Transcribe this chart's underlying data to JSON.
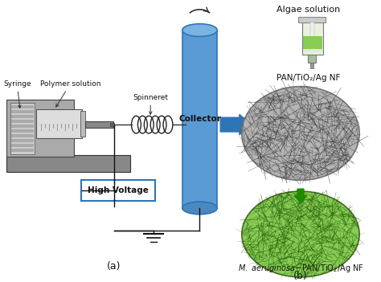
{
  "bg_color": "#ffffff",
  "label_a": "(a)",
  "label_b": "(b)",
  "label_syringe": "Syringe",
  "label_polymer": "Polymer solution",
  "label_spinneret": "Spinneret",
  "label_collector": "Collector",
  "label_high_voltage": "High Voltage",
  "label_algae": "Algae solution",
  "label_pan_tio2": "PAN/TiO₂/Ag NF",
  "label_m_aeru": "M. aeruginosa-PAN/TiO₂/Ag NF",
  "collector_color": "#5b9bd5",
  "collector_dark": "#2e75b6",
  "collector_light": "#7ab4e0",
  "arrow_color": "#2e75b6",
  "green_arrow_color": "#1e8a00",
  "hv_box_edge": "#2e75b6",
  "wire_color": "#111111",
  "gray_base": "#999999",
  "light_gray": "#cccccc",
  "mid_gray": "#aaaaaa",
  "dark_gray": "#555555",
  "green_circle": "#77bb44",
  "green_dark": "#3a7010"
}
